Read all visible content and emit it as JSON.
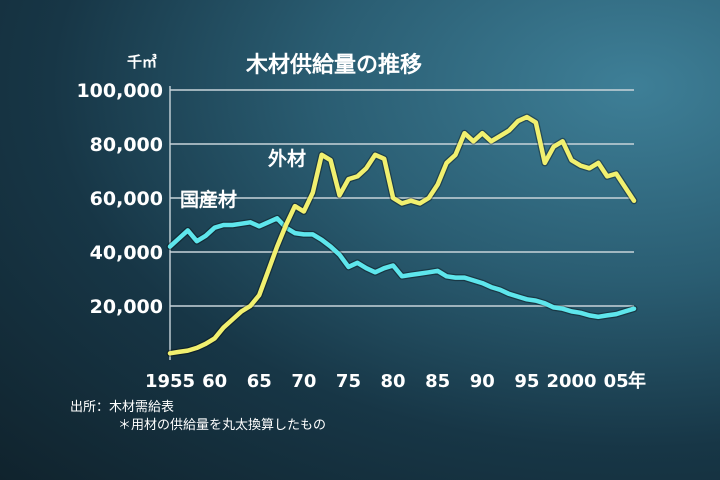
{
  "chart_data": {
    "type": "line",
    "title": "木材供給量の推移",
    "ylabel": "千㎥",
    "xunit": "年",
    "ylim": [
      0,
      100000
    ],
    "yticks": [
      20000,
      40000,
      60000,
      80000,
      100000
    ],
    "ytick_labels": [
      "20,000",
      "40,000",
      "60,000",
      "80,000",
      "100,000"
    ],
    "xticks": [
      1955,
      1960,
      1965,
      1970,
      1975,
      1980,
      1985,
      1990,
      1995,
      2000,
      2005
    ],
    "xtick_labels": [
      "1955",
      "60",
      "65",
      "70",
      "75",
      "80",
      "85",
      "90",
      "95",
      "2000",
      "05"
    ],
    "grid": true,
    "series": [
      {
        "name": "国産材",
        "color": "#5ee6ec",
        "x": [
          1955,
          1956,
          1957,
          1958,
          1959,
          1960,
          1961,
          1962,
          1963,
          1964,
          1965,
          1966,
          1967,
          1968,
          1969,
          1970,
          1971,
          1972,
          1973,
          1974,
          1975,
          1976,
          1977,
          1978,
          1979,
          1980,
          1981,
          1982,
          1983,
          1984,
          1985,
          1986,
          1987,
          1988,
          1989,
          1990,
          1991,
          1992,
          1993,
          1994,
          1995,
          1996,
          1997,
          1998,
          1999,
          2000,
          2001,
          2002,
          2003,
          2004,
          2005,
          2006,
          2007
        ],
        "values": [
          42000,
          45000,
          48000,
          44000,
          46000,
          49000,
          50000,
          50000,
          50500,
          51000,
          49500,
          51000,
          52500,
          49000,
          47000,
          46500,
          46500,
          44500,
          42000,
          39000,
          34500,
          36000,
          34000,
          32500,
          34000,
          35000,
          31000,
          31500,
          32000,
          32500,
          33000,
          31000,
          30500,
          30500,
          29500,
          28500,
          27000,
          26000,
          24500,
          23500,
          22500,
          22000,
          21000,
          19500,
          19000,
          18000,
          17500,
          16500,
          16000,
          16500,
          17000,
          18000,
          19000
        ]
      },
      {
        "name": "外材",
        "color": "#f1f06f",
        "x": [
          1955,
          1956,
          1957,
          1958,
          1959,
          1960,
          1961,
          1962,
          1963,
          1964,
          1965,
          1966,
          1967,
          1968,
          1969,
          1970,
          1971,
          1972,
          1973,
          1974,
          1975,
          1976,
          1977,
          1978,
          1979,
          1980,
          1981,
          1982,
          1983,
          1984,
          1985,
          1986,
          1987,
          1988,
          1989,
          1990,
          1991,
          1992,
          1993,
          1994,
          1995,
          1996,
          1997,
          1998,
          1999,
          2000,
          2001,
          2002,
          2003,
          2004,
          2005,
          2006,
          2007
        ],
        "values": [
          2500,
          3000,
          3500,
          4500,
          6000,
          8000,
          12000,
          15000,
          18000,
          20000,
          24000,
          33000,
          42000,
          50000,
          57000,
          55000,
          62000,
          76000,
          74000,
          61000,
          67000,
          68000,
          71000,
          76000,
          74500,
          60000,
          58000,
          59000,
          58000,
          60000,
          65000,
          73000,
          76000,
          84000,
          81000,
          84000,
          81000,
          83000,
          85000,
          88500,
          90000,
          88000,
          73000,
          79000,
          81000,
          74000,
          72000,
          71000,
          73000,
          68000,
          69000,
          64000,
          59000
        ]
      }
    ]
  },
  "labels": {
    "domestic": "国産材",
    "imported": "外材"
  },
  "notes": {
    "source": "出所：木材需給表",
    "footnote": "＊用材の供給量を丸太換算したもの"
  }
}
